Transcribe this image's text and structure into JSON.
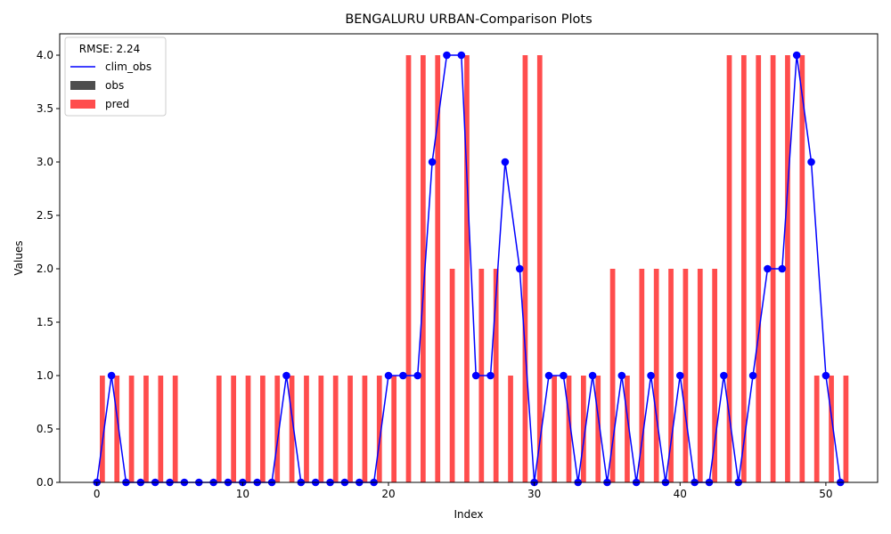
{
  "chart_data": {
    "type": "bar",
    "title": "BENGALURU URBAN-Comparison Plots",
    "xlabel": "Index",
    "ylabel": "Values",
    "xlim": [
      -2.55,
      53.55
    ],
    "ylim": [
      0,
      4.2
    ],
    "xticks": [
      0,
      10,
      20,
      30,
      40,
      50
    ],
    "yticks": [
      0.0,
      0.5,
      1.0,
      1.5,
      2.0,
      2.5,
      3.0,
      3.5,
      4.0
    ],
    "xtick_labels": [
      "0",
      "10",
      "20",
      "30",
      "40",
      "50"
    ],
    "ytick_labels": [
      "0.0",
      "0.5",
      "1.0",
      "1.5",
      "2.0",
      "2.5",
      "3.0",
      "3.5",
      "4.0"
    ],
    "grid": false,
    "legend": {
      "title": "RMSE: 2.24",
      "placement": "top-left",
      "entries": [
        "clim_obs",
        "obs",
        "pred"
      ]
    },
    "x": [
      0,
      1,
      2,
      3,
      4,
      5,
      6,
      7,
      8,
      9,
      10,
      11,
      12,
      13,
      14,
      15,
      16,
      17,
      18,
      19,
      20,
      21,
      22,
      23,
      24,
      25,
      26,
      27,
      28,
      29,
      30,
      31,
      32,
      33,
      34,
      35,
      36,
      37,
      38,
      39,
      40,
      41,
      42,
      43,
      44,
      45,
      46,
      47,
      48,
      49,
      50,
      51
    ],
    "series": [
      {
        "name": "clim_obs",
        "kind": "line",
        "color": "#0000ff",
        "values": [
          0,
          1,
          0,
          0,
          0,
          0,
          0,
          0,
          0,
          0,
          0,
          0,
          0,
          1,
          0,
          0,
          0,
          0,
          0,
          0,
          1,
          1,
          1,
          3,
          4,
          4,
          1,
          1,
          3,
          2,
          0,
          1,
          1,
          0,
          1,
          0,
          1,
          0,
          1,
          0,
          1,
          0,
          0,
          1,
          0,
          1,
          2,
          2,
          4,
          3,
          1,
          0
        ]
      },
      {
        "name": "obs",
        "kind": "bar",
        "color": "#4d4d4d",
        "values": [
          0,
          0,
          0,
          0,
          0,
          0,
          0,
          0,
          0,
          0,
          0,
          0,
          0,
          0,
          0,
          0,
          0,
          0,
          0,
          0,
          0,
          0,
          0,
          0,
          0,
          0,
          0,
          0,
          0,
          0,
          0,
          0,
          0,
          0,
          0,
          0,
          0,
          0,
          0,
          0,
          0,
          0,
          0,
          0,
          0,
          0,
          0,
          0,
          0,
          0,
          0,
          0
        ]
      },
      {
        "name": "pred",
        "kind": "bar",
        "color": "#ff4d4d",
        "values": [
          1,
          1,
          1,
          1,
          1,
          1,
          0,
          0,
          1,
          1,
          1,
          1,
          1,
          1,
          1,
          1,
          1,
          1,
          1,
          1,
          1,
          4,
          4,
          4,
          2,
          4,
          2,
          2,
          1,
          4,
          4,
          1,
          1,
          1,
          1,
          2,
          1,
          2,
          2,
          2,
          2,
          2,
          2,
          4,
          4,
          4,
          4,
          4,
          4,
          1,
          1,
          1
        ]
      }
    ]
  }
}
